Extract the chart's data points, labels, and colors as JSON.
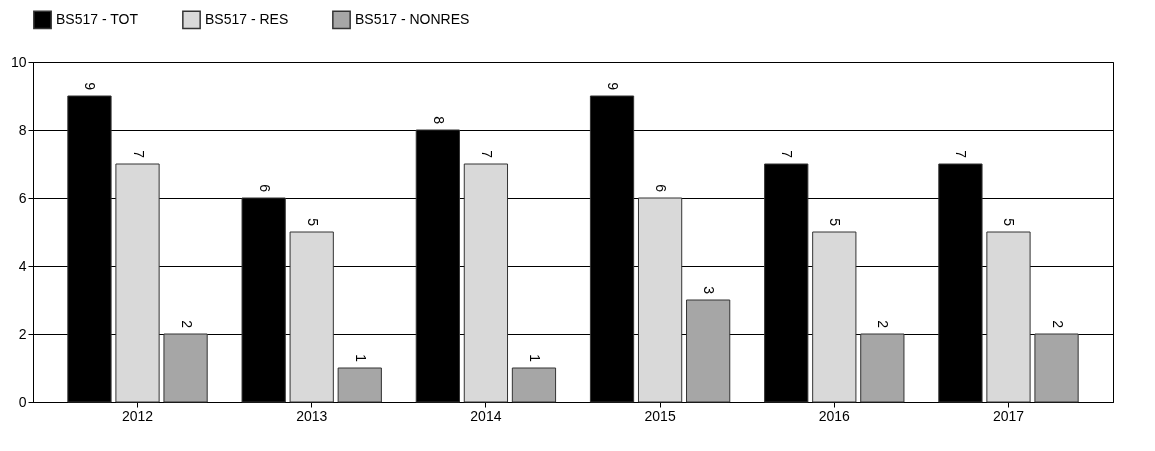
{
  "chart_data": {
    "type": "bar",
    "categories": [
      "2012",
      "2013",
      "2014",
      "2015",
      "2016",
      "2017"
    ],
    "series": [
      {
        "name": "BS517 - TOT",
        "color": "#000000",
        "values": [
          9,
          6,
          8,
          9,
          7,
          7
        ]
      },
      {
        "name": "BS517 - RES",
        "color": "#d9d9d9",
        "values": [
          7,
          5,
          7,
          6,
          5,
          5
        ]
      },
      {
        "name": "BS517 - NONRES",
        "color": "#a6a6a6",
        "values": [
          2,
          1,
          1,
          3,
          2,
          2
        ]
      }
    ],
    "ylim": [
      0,
      10
    ],
    "yticks": [
      0,
      2,
      4,
      6,
      8,
      10
    ],
    "grid": "y",
    "legend": "top",
    "data_labels": true
  }
}
